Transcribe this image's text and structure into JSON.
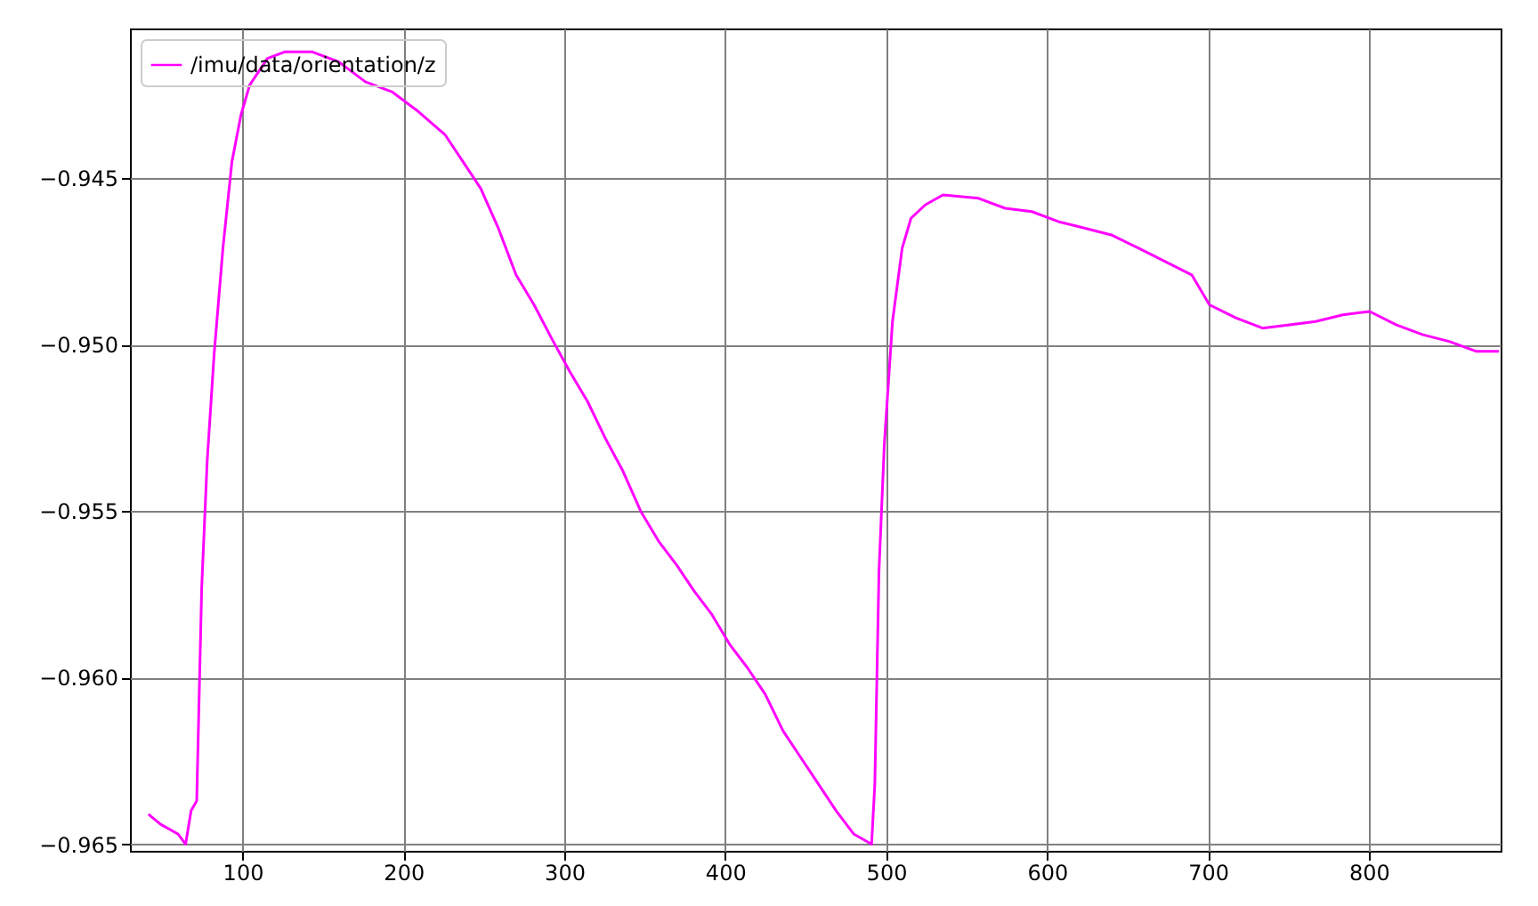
{
  "chart_data": {
    "type": "line",
    "x": [
      41.5,
      49,
      60,
      64.6,
      68,
      71.5,
      74.6,
      78,
      82.3,
      87.8,
      93.4,
      99,
      104.4,
      115.5,
      126.5,
      143,
      159.7,
      176.3,
      192.8,
      209.4,
      226,
      237,
      248,
      259,
      270,
      281.2,
      292,
      303.3,
      314.4,
      325.4,
      336.5,
      347.5,
      358.6,
      369.6,
      380.7,
      391.7,
      402.8,
      413.8,
      424.9,
      436,
      447,
      458,
      469,
      480,
      491,
      493,
      495.6,
      498.9,
      504,
      510,
      515.5,
      524.3,
      535.4,
      557.5,
      574,
      590.6,
      607,
      623.8,
      640,
      657,
      673.5,
      690,
      701,
      717.7,
      734,
      750.8,
      767,
      784,
      800.6,
      817,
      833.7,
      850,
      867,
      881
    ],
    "series": [
      {
        "name": "/imu/data/orientation/z",
        "color": "#ff00ff",
        "values": [
          -0.9641,
          -0.9644,
          -0.9647,
          -0.965,
          -0.964,
          -0.9637,
          -0.9573,
          -0.9535,
          -0.9503,
          -0.9471,
          -0.9445,
          -0.9431,
          -0.9422,
          -0.9414,
          -0.9412,
          -0.9412,
          -0.9415,
          -0.9421,
          -0.9424,
          -0.943,
          -0.9437,
          -0.9445,
          -0.9453,
          -0.9465,
          -0.9479,
          -0.9488,
          -0.9498,
          -0.9508,
          -0.9517,
          -0.9528,
          -0.9538,
          -0.955,
          -0.9559,
          -0.9566,
          -0.9574,
          -0.9581,
          -0.959,
          -0.9597,
          -0.9605,
          -0.9616,
          -0.9624,
          -0.9632,
          -0.964,
          -0.9647,
          -0.965,
          -0.9632,
          -0.9568,
          -0.953,
          -0.9493,
          -0.9471,
          -0.9462,
          -0.9458,
          -0.9455,
          -0.9456,
          -0.9459,
          -0.946,
          -0.9463,
          -0.9465,
          -0.9467,
          -0.9471,
          -0.9475,
          -0.9479,
          -0.9488,
          -0.9492,
          -0.9495,
          -0.9494,
          -0.9493,
          -0.9491,
          -0.949,
          -0.9494,
          -0.9497,
          -0.9499,
          -0.9502,
          -0.9502
        ]
      }
    ],
    "xlim": [
      30,
      882
    ],
    "xticks": [
      100,
      200,
      300,
      400,
      500,
      600,
      700,
      800
    ],
    "ylim": [
      -0.9652,
      -0.9405
    ],
    "yticks": [
      -0.965,
      {
        "value": -0.96,
        "label": "−0.960"
      },
      -0.955,
      {
        "value": -0.95,
        "label": "−0.950"
      },
      -0.945
    ],
    "grid": true,
    "legend": "top left"
  }
}
